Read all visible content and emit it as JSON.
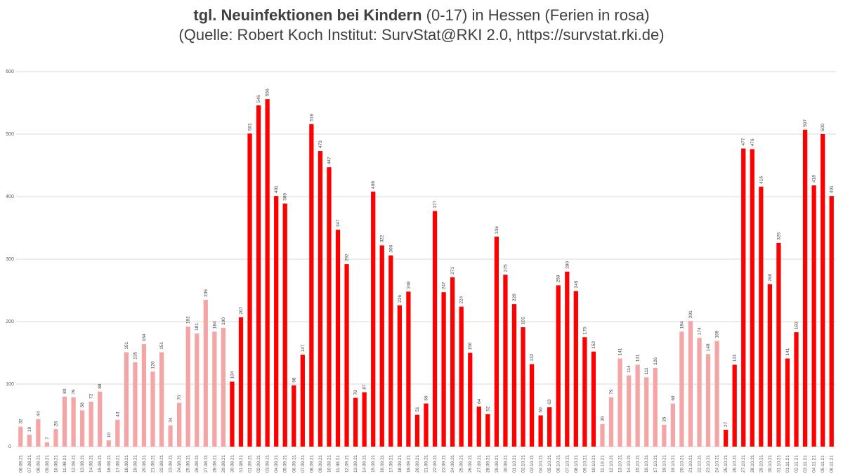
{
  "title_bold": "tgl. Neuinfektionen bei Kindern",
  "title_rest": " (0-17) in Hessen (Ferien in rosa)",
  "subtitle": "(Quelle: Robert Koch Institut: SurvStat@RKI 2.0, https://survstat.rki.de)",
  "colors": {
    "school": "#ff0000",
    "holiday": "#f4a6a6",
    "grid": "#d9d9d9",
    "text": "#404040"
  },
  "chart_data": {
    "type": "bar",
    "title": "tgl. Neuinfektionen bei Kindern (0-17) in Hessen (Ferien in rosa)",
    "subtitle": "(Quelle: Robert Koch Institut: SurvStat@RKI 2.0, https://survstat.rki.de)",
    "ylim": [
      0,
      600
    ],
    "yticks": [
      0,
      100,
      200,
      300,
      400,
      500,
      600
    ],
    "grid": true,
    "legend": "none",
    "categories": [
      "06.08.21",
      "07.08.21",
      "08.08.21",
      "09.08.21",
      "10.08.21",
      "11.08.21",
      "12.08.21",
      "13.08.21",
      "14.08.21",
      "15.08.21",
      "16.08.21",
      "17.08.21",
      "18.08.21",
      "19.08.21",
      "20.08.21",
      "21.08.21",
      "22.08.21",
      "23.08.21",
      "24.08.21",
      "25.08.21",
      "26.08.21",
      "27.08.21",
      "28.08.21",
      "29.08.21",
      "30.08.21",
      "31.08.21",
      "01.09.21",
      "02.09.21",
      "03.09.21",
      "04.09.21",
      "05.09.21",
      "06.09.21",
      "07.09.21",
      "08.09.21",
      "09.09.21",
      "10.09.21",
      "11.09.21",
      "12.09.21",
      "13.09.21",
      "14.09.21",
      "15.09.21",
      "16.09.21",
      "17.09.21",
      "18.09.21",
      "19.09.21",
      "20.09.21",
      "21.09.21",
      "22.09.21",
      "23.09.21",
      "24.09.21",
      "25.09.21",
      "26.09.21",
      "27.09.21",
      "28.09.21",
      "29.09.21",
      "30.09.21",
      "01.10.21",
      "02.10.21",
      "03.10.21",
      "04.10.21",
      "05.10.21",
      "06.10.21",
      "07.10.21",
      "08.10.21",
      "09.10.21",
      "10.10.21",
      "11.10.21",
      "12.10.21",
      "13.10.21",
      "14.10.21",
      "15.10.21",
      "16.10.21",
      "17.10.21",
      "18.10.21",
      "19.10.21",
      "20.10.21",
      "21.10.21",
      "22.10.21",
      "23.10.21",
      "24.10.21",
      "25.10.21",
      "26.10.21",
      "27.10.21",
      "28.10.21",
      "29.10.21",
      "30.10.21",
      "31.10.21",
      "01.11.21",
      "02.11.21",
      "03.11.21",
      "04.11.21",
      "05.11.21",
      "06.11.21"
    ],
    "values": [
      32,
      19,
      44,
      7,
      28,
      80,
      79,
      58,
      72,
      88,
      10,
      43,
      151,
      135,
      164,
      120,
      151,
      34,
      70,
      192,
      181,
      235,
      184,
      190,
      104,
      207,
      501,
      546,
      556,
      401,
      389,
      98,
      147,
      516,
      473,
      447,
      347,
      292,
      78,
      87,
      408,
      322,
      306,
      226,
      248,
      51,
      69,
      377,
      247,
      271,
      224,
      150,
      64,
      52,
      336,
      275,
      228,
      191,
      132,
      50,
      63,
      258,
      280,
      249,
      175,
      152,
      36,
      79,
      141,
      114,
      131,
      111,
      126,
      35,
      69,
      184,
      201,
      174,
      148,
      169,
      27,
      131,
      477,
      476,
      416,
      260,
      326,
      141,
      183,
      507,
      418,
      500,
      401
    ],
    "holiday": [
      1,
      1,
      1,
      1,
      1,
      1,
      1,
      1,
      1,
      1,
      1,
      1,
      1,
      1,
      1,
      1,
      1,
      1,
      1,
      1,
      1,
      1,
      1,
      1,
      0,
      0,
      0,
      0,
      0,
      0,
      0,
      0,
      0,
      0,
      0,
      0,
      0,
      0,
      0,
      0,
      0,
      0,
      0,
      0,
      0,
      0,
      0,
      0,
      0,
      0,
      0,
      0,
      0,
      0,
      0,
      0,
      0,
      0,
      0,
      0,
      0,
      0,
      0,
      0,
      0,
      0,
      1,
      1,
      1,
      1,
      1,
      1,
      1,
      1,
      1,
      1,
      1,
      1,
      1,
      1,
      0,
      0,
      0,
      0,
      0,
      0,
      0,
      0,
      0,
      0,
      0,
      0,
      0
    ]
  }
}
